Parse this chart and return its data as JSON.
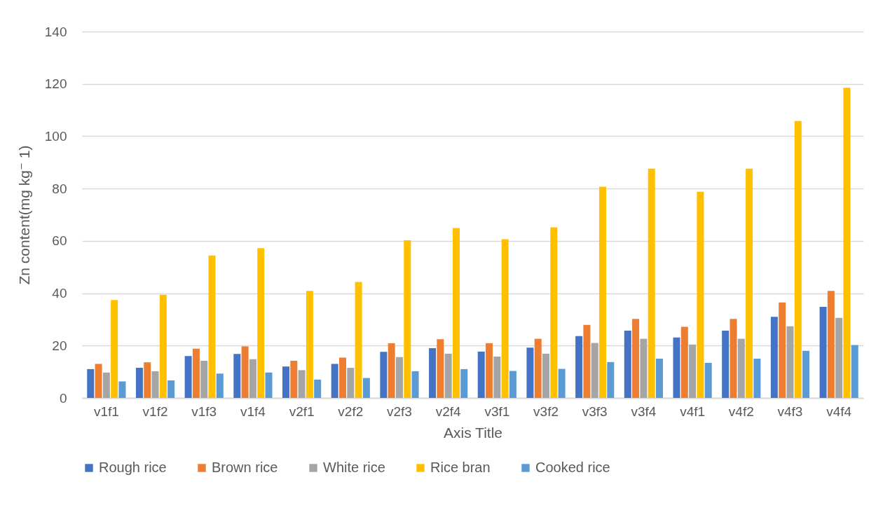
{
  "chart_data": {
    "type": "bar",
    "xlabel": "Axis Title",
    "ylabel": "Zn content(mg kg⁻ 1)",
    "categories": [
      "v1f1",
      "v1f2",
      "v1f3",
      "v1f4",
      "v2f1",
      "v2f2",
      "v2f3",
      "v2f4",
      "v3f1",
      "v3f2",
      "v3f3",
      "v3f4",
      "v4f1",
      "v4f2",
      "v4f3",
      "v4f4"
    ],
    "series": [
      {
        "name": "Rough rice",
        "color": "#4472c4",
        "values": [
          11,
          11.5,
          16,
          16.8,
          12,
          13,
          17.6,
          19,
          17.7,
          19.2,
          23.6,
          25.7,
          23.1,
          25.7,
          31,
          34.8
        ]
      },
      {
        "name": "Brown rice",
        "color": "#ed7d31",
        "values": [
          13,
          13.6,
          18.8,
          19.7,
          14.2,
          15.4,
          20.9,
          22.4,
          20.9,
          22.6,
          27.9,
          30.2,
          27.2,
          30.2,
          36.5,
          40.9
        ]
      },
      {
        "name": "White rice",
        "color": "#a5a5a5",
        "values": [
          9.7,
          10.2,
          14.2,
          14.8,
          10.6,
          11.5,
          15.6,
          16.9,
          15.8,
          16.9,
          21,
          22.6,
          20.4,
          22.6,
          27.4,
          30.6
        ]
      },
      {
        "name": "Rice bran",
        "color": "#ffc000",
        "values": [
          37.4,
          39.4,
          54.4,
          57.2,
          40.9,
          44.3,
          60.2,
          64.9,
          60.6,
          65.2,
          80.7,
          87.6,
          78.8,
          87.6,
          105.8,
          118.5
        ]
      },
      {
        "name": "Cooked rice",
        "color": "#5b9bd5",
        "values": [
          6.3,
          6.7,
          9.3,
          9.7,
          7,
          7.6,
          10.2,
          11,
          10.3,
          11.1,
          13.7,
          15,
          13.4,
          15,
          18,
          20.2
        ]
      }
    ],
    "ylim": [
      0,
      140
    ],
    "yticks": [
      0,
      20,
      40,
      60,
      80,
      100,
      120,
      140
    ],
    "grid": "y",
    "legend": "bottom"
  }
}
